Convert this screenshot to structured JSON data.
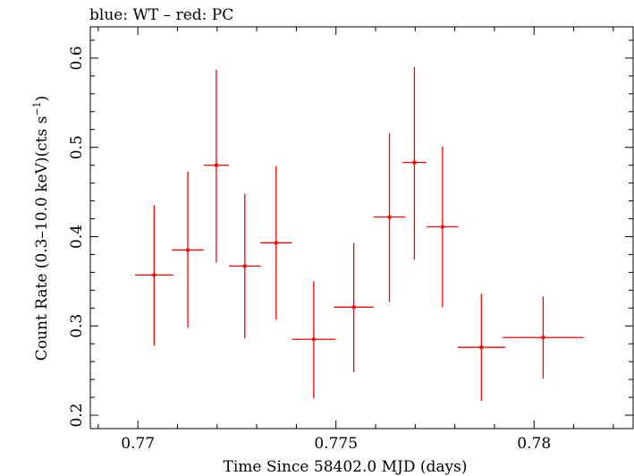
{
  "chart_data": {
    "type": "scatter",
    "title": "blue: WT – red: PC",
    "xlabel": "Time Since 58402.0 MJD (days)",
    "ylabel_main": "Count Rate (0.3–10.0 keV)(cts s",
    "ylabel_sup": "−1",
    "ylabel_close": ")",
    "xlim": [
      0.7688,
      0.7825
    ],
    "ylim": [
      0.185,
      0.635
    ],
    "xticks": [
      0.77,
      0.775,
      0.78
    ],
    "xtick_labels": [
      "0.77",
      "0.775",
      "0.78"
    ],
    "yticks": [
      0.2,
      0.3,
      0.4,
      0.5,
      0.6
    ],
    "ytick_labels": [
      "0.2",
      "0.3",
      "0.4",
      "0.5",
      "0.6"
    ],
    "grid": false,
    "series": [
      {
        "color": "#ff0000",
        "points": [
          {
            "x": 0.77041,
            "xerr": 0.00048,
            "y": 0.357,
            "ylo": 0.278,
            "yhi": 0.435
          },
          {
            "x": 0.77126,
            "xerr": 0.0004,
            "y": 0.385,
            "ylo": 0.298,
            "yhi": 0.473
          },
          {
            "x": 0.77198,
            "xerr": 0.00032,
            "y": 0.48,
            "ylo": 0.371,
            "yhi": 0.587
          },
          {
            "x": 0.7727,
            "xerr": 0.0004,
            "y": 0.367,
            "ylo": 0.286,
            "yhi": 0.448
          },
          {
            "x": 0.77349,
            "xerr": 0.0004,
            "y": 0.393,
            "ylo": 0.307,
            "yhi": 0.479
          },
          {
            "x": 0.77444,
            "xerr": 0.00055,
            "y": 0.285,
            "ylo": 0.219,
            "yhi": 0.35
          },
          {
            "x": 0.77545,
            "xerr": 0.0005,
            "y": 0.321,
            "ylo": 0.248,
            "yhi": 0.393
          },
          {
            "x": 0.77635,
            "xerr": 0.0004,
            "y": 0.422,
            "ylo": 0.327,
            "yhi": 0.516
          },
          {
            "x": 0.77698,
            "xerr": 0.0003,
            "y": 0.483,
            "ylo": 0.374,
            "yhi": 0.59
          },
          {
            "x": 0.77769,
            "xerr": 0.0004,
            "y": 0.411,
            "ylo": 0.321,
            "yhi": 0.501
          },
          {
            "x": 0.77867,
            "xerr": 0.0006,
            "y": 0.276,
            "ylo": 0.216,
            "yhi": 0.336
          },
          {
            "x": 0.78023,
            "xerr": 0.00102,
            "y": 0.287,
            "ylo": 0.241,
            "yhi": 0.333
          }
        ]
      }
    ]
  }
}
